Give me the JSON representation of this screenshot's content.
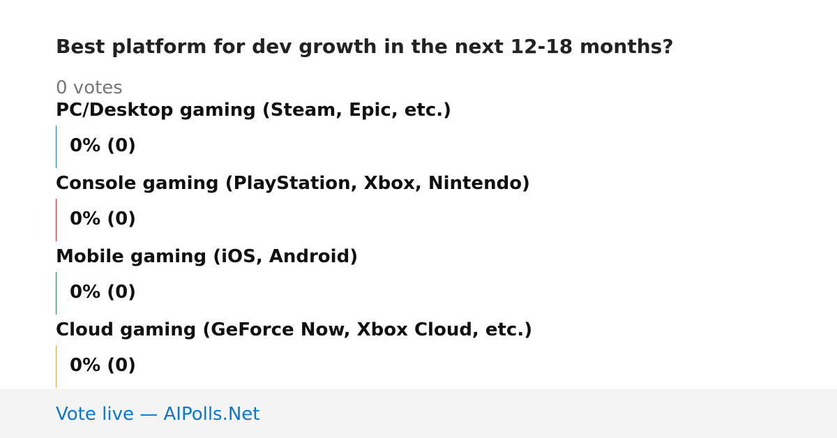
{
  "title": "Best platform for dev growth in the next 12-18 months?",
  "total_votes": "0 votes",
  "options": [
    {
      "label": "PC/Desktop gaming (Steam, Epic, etc.)",
      "result": "0% (0)",
      "color": "#1f77b4"
    },
    {
      "label": "Console gaming (PlayStation, Xbox, Nintendo)",
      "result": "0% (0)",
      "color": "#d62728"
    },
    {
      "label": "Mobile gaming (iOS, Android)",
      "result": "0% (0)",
      "color": "#2e7d4f"
    },
    {
      "label": "Cloud gaming (GeForce Now, Xbox Cloud, etc.)",
      "result": "0% (0)",
      "color": "#e8a04a"
    }
  ],
  "footer": "Vote live — AIPolls.Net"
}
